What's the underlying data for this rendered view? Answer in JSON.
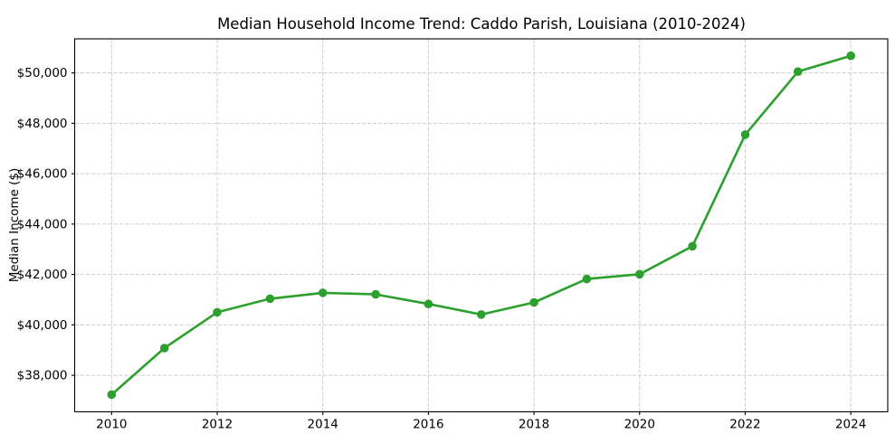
{
  "figure": {
    "background": "#ffffff"
  },
  "chart_data": {
    "type": "line",
    "title": "Median Household Income Trend: Caddo Parish, Louisiana (2010-2024)",
    "xlabel": "",
    "ylabel": "Median Income ($)",
    "x": [
      2010,
      2011,
      2012,
      2013,
      2014,
      2015,
      2016,
      2017,
      2018,
      2019,
      2020,
      2021,
      2022,
      2023,
      2024
    ],
    "series": [
      {
        "name": "Median Household Income",
        "values": [
          37230,
          39080,
          40500,
          41040,
          41270,
          41210,
          40830,
          40410,
          40890,
          41820,
          42010,
          43120,
          47550,
          50050,
          50680
        ],
        "color": "#2ca02c",
        "marker": "circle"
      }
    ],
    "xticks": [
      2010,
      2012,
      2014,
      2016,
      2018,
      2020,
      2022,
      2024
    ],
    "xtick_labels": [
      "2010",
      "2012",
      "2014",
      "2016",
      "2018",
      "2020",
      "2022",
      "2024"
    ],
    "yticks": [
      38000,
      40000,
      42000,
      44000,
      46000,
      48000,
      50000
    ],
    "ytick_labels": [
      "$38,000",
      "$40,000",
      "$42,000",
      "$44,000",
      "$46,000",
      "$48,000",
      "$50,000"
    ],
    "xlim": [
      2009.3,
      2024.7
    ],
    "ylim": [
      36550,
      51350
    ],
    "grid": true,
    "grid_on": "both",
    "legend": null,
    "colors": {
      "line": "#2ca02c",
      "grid": "#cdcdcd",
      "axis": "#000000",
      "text": "#000000",
      "background": "#ffffff"
    }
  }
}
